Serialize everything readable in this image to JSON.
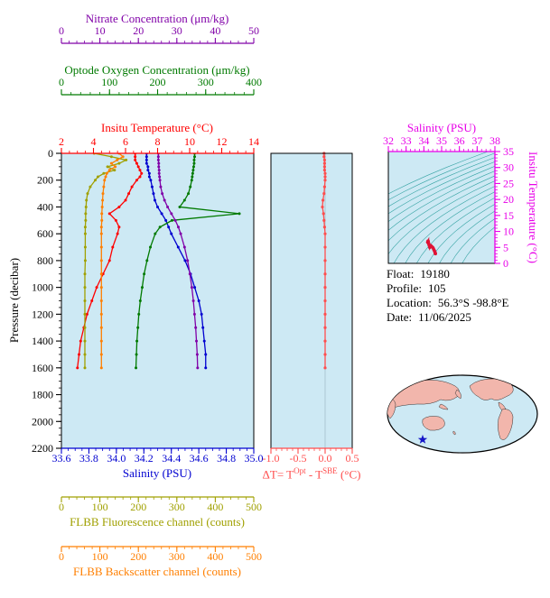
{
  "info": {
    "float_label": "Float:",
    "float_value": "19180",
    "profile_label": "Profile:",
    "profile_value": "105",
    "location_label": "Location:",
    "location_value": "56.3°S  -98.8°E",
    "date_label": "Date:",
    "date_value": "11/06/2025"
  },
  "chart_data": {
    "type": "line",
    "title": "",
    "plot_bg": "#cde9f4",
    "axes": {
      "pressure": {
        "label": "Pressure (decibar)",
        "range": [
          0,
          2200
        ],
        "ticks": [
          0,
          200,
          400,
          600,
          800,
          1000,
          1200,
          1400,
          1600,
          1800,
          2000,
          2200
        ],
        "tick_labels": [
          "0",
          "200",
          "400",
          "600",
          "800",
          "1000",
          "1200",
          "1400",
          "1600",
          "1800",
          "2000",
          "2200"
        ],
        "minor": 50,
        "color": "#000000"
      },
      "temp": {
        "label": "Insitu Temperature (°C)",
        "range": [
          2,
          14
        ],
        "ticks": [
          2,
          4,
          6,
          8,
          10,
          12,
          14
        ],
        "tick_labels": [
          "2",
          "4",
          "6",
          "8",
          "10",
          "12",
          "14"
        ],
        "minor": 0.5,
        "color": "#ff0000"
      },
      "sal": {
        "label": "Salinity (PSU)",
        "range": [
          33.6,
          35.0
        ],
        "ticks": [
          33.6,
          33.8,
          34.0,
          34.2,
          34.4,
          34.6,
          34.8,
          35.0
        ],
        "tick_labels": [
          "33.6",
          "33.8",
          "34.0",
          "34.2",
          "34.4",
          "34.6",
          "34.8",
          "35.0"
        ],
        "minor": 0.05,
        "color": "#0000d0"
      },
      "nit": {
        "label": "Nitrate Concentration (μm/kg)",
        "range": [
          0,
          50
        ],
        "ticks": [
          0,
          10,
          20,
          30,
          40,
          50
        ],
        "tick_labels": [
          "0",
          "10",
          "20",
          "30",
          "40",
          "50"
        ],
        "minor": 2,
        "color": "#8000a8"
      },
      "oxy": {
        "label": "Optode Oxygen Concentration (μm/kg)",
        "range": [
          0,
          400
        ],
        "ticks": [
          0,
          100,
          200,
          300,
          400
        ],
        "tick_labels": [
          "0",
          "100",
          "200",
          "300",
          "400"
        ],
        "minor": 20,
        "color": "#007a00"
      },
      "flu": {
        "label": "FLBB Fluorescence channel (counts)",
        "range": [
          0,
          500
        ],
        "ticks": [
          0,
          100,
          200,
          300,
          400,
          500
        ],
        "tick_labels": [
          "0",
          "100",
          "200",
          "300",
          "400",
          "500"
        ],
        "minor": 20,
        "color": "#a0a000"
      },
      "bsc": {
        "label": "FLBB Backscatter channel (counts)",
        "range": [
          0,
          500
        ],
        "ticks": [
          0,
          100,
          200,
          300,
          400,
          500
        ],
        "tick_labels": [
          "0",
          "100",
          "200",
          "300",
          "400",
          "500"
        ],
        "minor": 20,
        "color": "#ff7f00"
      },
      "delta": {
        "label_parts": {
          "pre": "ΔT= T",
          "sup1": "Opt",
          "mid": " - T",
          "sup2": "SBE",
          "post": " (°C)"
        },
        "range": [
          -1.0,
          0.5
        ],
        "ticks": [
          -1.0,
          -0.5,
          0.0,
          0.5
        ],
        "tick_labels": [
          "-1.0",
          "-0.5",
          "0.0",
          "0.5"
        ],
        "minor": 0.1,
        "color": "#ff4d4d"
      },
      "ts_sal": {
        "label": "Salinity (PSU)",
        "range": [
          32,
          38
        ],
        "ticks": [
          32,
          33,
          34,
          35,
          36,
          37,
          38
        ],
        "tick_labels": [
          "32",
          "33",
          "34",
          "35",
          "36",
          "37",
          "38"
        ],
        "minor": 0.25,
        "color": "#e800e8"
      },
      "ts_temp": {
        "label": "Insitu Temperature (°C)",
        "range": [
          0,
          35
        ],
        "ticks": [
          0,
          5,
          10,
          15,
          20,
          25,
          30,
          35
        ],
        "tick_labels": [
          "0",
          "5",
          "10",
          "15",
          "20",
          "25",
          "30",
          "35"
        ],
        "minor": 1,
        "color": "#e800e8"
      }
    },
    "profiles": {
      "pressure": [
        0,
        25,
        50,
        75,
        100,
        125,
        150,
        175,
        200,
        250,
        300,
        350,
        400,
        450,
        500,
        550,
        600,
        700,
        800,
        900,
        1000,
        1100,
        1200,
        1300,
        1400,
        1500,
        1600
      ],
      "series": [
        {
          "name": "temperature",
          "axis": "temp",
          "color": "#ff0000",
          "values": [
            6.6,
            6.6,
            6.6,
            6.7,
            6.8,
            6.9,
            7.0,
            6.9,
            6.7,
            6.4,
            6.2,
            6.0,
            5.6,
            5.0,
            5.4,
            5.6,
            5.5,
            5.2,
            5.0,
            4.6,
            4.2,
            3.9,
            3.6,
            3.4,
            3.2,
            3.1,
            3.0
          ]
        },
        {
          "name": "salinity",
          "axis": "sal",
          "color": "#0000d0",
          "values": [
            34.22,
            34.22,
            34.22,
            34.22,
            34.23,
            34.23,
            34.24,
            34.24,
            34.25,
            34.26,
            34.27,
            34.28,
            34.3,
            34.33,
            34.36,
            34.38,
            34.4,
            34.45,
            34.5,
            34.54,
            34.57,
            34.6,
            34.62,
            34.63,
            34.64,
            34.65,
            34.65
          ]
        },
        {
          "name": "oxygen",
          "axis": "oxy",
          "color": "#007a00",
          "values": [
            277,
            277,
            276,
            276,
            275,
            274,
            273,
            272,
            271,
            268,
            264,
            256,
            246,
            370,
            230,
            205,
            195,
            185,
            178,
            172,
            168,
            164,
            161,
            159,
            157,
            156,
            155
          ]
        },
        {
          "name": "nitrate",
          "axis": "nit",
          "color": "#8000a8",
          "values": [
            25.2,
            25.2,
            25.2,
            25.3,
            25.3,
            25.4,
            25.4,
            25.5,
            25.6,
            25.8,
            26.2,
            26.8,
            27.6,
            28.6,
            29.6,
            30.4,
            31.0,
            32.0,
            32.8,
            33.4,
            33.9,
            34.3,
            34.6,
            34.9,
            35.1,
            35.3,
            35.4
          ]
        },
        {
          "name": "fluorescence",
          "axis": "flu",
          "color": "#a0a000",
          "values": [
            85,
            130,
            168,
            150,
            120,
            138,
            110,
            95,
            88,
            75,
            68,
            65,
            64,
            63,
            63,
            62,
            62,
            62,
            62,
            61,
            61,
            61,
            61,
            61,
            61,
            61,
            61
          ]
        },
        {
          "name": "backscatter",
          "axis": "bsc",
          "color": "#ff7f00",
          "values": [
            150,
            160,
            145,
            130,
            140,
            125,
            118,
            115,
            112,
            110,
            108,
            107,
            106,
            105,
            105,
            104,
            104,
            104,
            104,
            104,
            104,
            104,
            104,
            104,
            104,
            104,
            104
          ]
        }
      ]
    },
    "delta_t": {
      "values": [
        -0.02,
        -0.02,
        -0.01,
        -0.01,
        -0.01,
        -0.01,
        0.0,
        0.0,
        0.0,
        -0.01,
        -0.02,
        -0.04,
        -0.05,
        -0.03,
        -0.02,
        -0.01,
        0.0,
        0.0,
        0.0,
        0.0,
        0.0,
        0.0,
        0.0,
        0.0,
        0.0,
        0.0,
        0.0
      ]
    },
    "ts": {
      "sigma_levels": [
        22.0,
        22.5,
        23.0,
        23.5,
        24.0,
        24.5,
        25.0,
        25.5,
        26.0,
        26.5,
        27.0,
        27.5,
        28.0,
        28.5,
        29.0
      ],
      "contour_color": "#35a3a3",
      "point_color": "#e01235"
    },
    "map": {
      "star_x_frac": 0.235,
      "star_y_frac": 0.83,
      "star_color": "#1515c8",
      "land_color": "#f2b6ac",
      "ocean_color": "#cde9f4"
    }
  }
}
